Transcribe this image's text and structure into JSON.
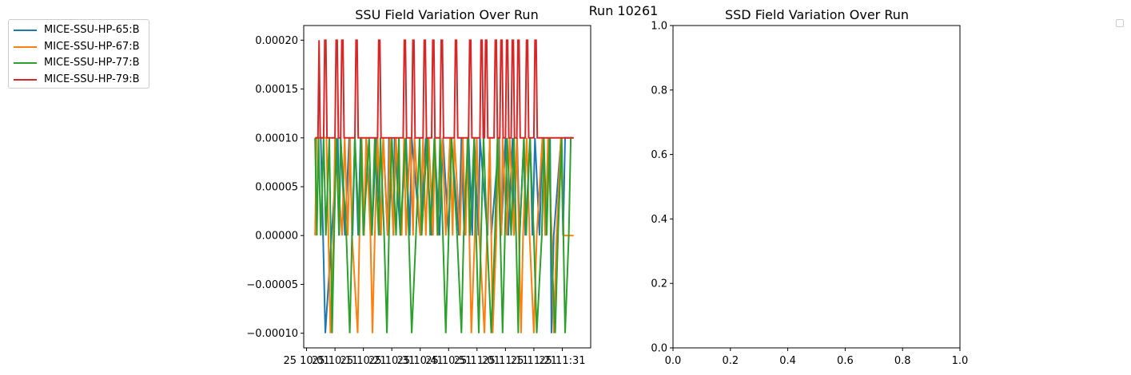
{
  "suptitle": "Run 10261",
  "colors": {
    "hp65": "#1f77b4",
    "hp67": "#ff7f0e",
    "hp77": "#2ca02c",
    "hp79": "#d62728"
  },
  "legend": {
    "entries": [
      "MICE-SSU-HP-65:B",
      "MICE-SSU-HP-67:B",
      "MICE-SSU-HP-77:B",
      "MICE-SSU-HP-79:B"
    ]
  },
  "chart_data": [
    {
      "type": "line",
      "title": "SSU Field Variation Over Run",
      "xlabel": "",
      "ylabel": "",
      "ylim": [
        -0.000115,
        0.000215
      ],
      "yticks": [
        "0.00020",
        "0.00015",
        "0.00010",
        "0.00005",
        "0.00000",
        "−0.00005",
        "−0.00010"
      ],
      "ytick_values": [
        0.0002,
        0.00015,
        0.0001,
        5e-05,
        0.0,
        -5e-05,
        -0.0001
      ],
      "xticks": [
        "25 10:01",
        "25 10:11",
        "25 10:21",
        "25 10:31",
        "25 10:41",
        "25 10:51",
        "25 11:01",
        "25 11:11",
        "25 11:21",
        "25 11:31"
      ],
      "xtick_minutes": [
        1,
        11,
        21,
        31,
        41,
        51,
        61,
        71,
        81,
        91
      ],
      "xlim_minutes": [
        0,
        101
      ],
      "grid": false,
      "legend_position": "outside-left",
      "series": [
        {
          "name": "MICE-SSU-HP-65:B",
          "x_minutes": [
            5,
            6,
            6.8,
            7.6,
            12,
            12.5,
            13,
            14.5,
            16,
            17.2,
            18,
            19.2,
            20,
            21.2,
            22,
            24,
            25.5,
            27,
            28,
            29.5,
            30,
            31.6,
            32,
            34,
            36,
            37.3,
            38,
            41,
            43,
            45,
            46,
            47.8,
            49,
            51,
            52,
            54.6,
            55.5,
            56.5,
            58,
            59.3,
            60,
            61.5,
            62,
            64.7,
            65.5,
            66,
            68.8,
            69.5,
            71,
            72,
            73.5,
            74,
            75.1,
            76,
            77.5,
            78,
            79.7,
            80.5,
            81.4,
            83,
            84,
            85,
            86.7,
            87.2,
            88,
            90.6,
            91.3,
            92,
            95
          ],
          "y": [
            0.0001,
            0.0001,
            0.0,
            -0.0001,
            0.0001,
            0.0,
            0.0001,
            0.0,
            0.0001,
            0.0,
            0.0001,
            0.0,
            0.0001,
            0.0,
            0.0001,
            0.0,
            0.0001,
            0.0,
            0.0001,
            0.0,
            0.0001,
            0.0,
            0.0001,
            0.0,
            0.0001,
            0.0,
            0.0001,
            0.0,
            0.0001,
            0.0,
            0.0001,
            0.0,
            0.0001,
            0.0,
            0.0001,
            0.0,
            0.0001,
            0.0,
            0.0001,
            0.0,
            0.0001,
            0.0,
            0.0001,
            0.0,
            0.0001,
            0.0,
            0.0001,
            0.0,
            0.0001,
            0.0,
            0.0001,
            0.0,
            0.0001,
            0.0,
            0.0001,
            0.0,
            0.0001,
            0.0,
            0.0001,
            0.0,
            0.0001,
            0.0,
            0.0001,
            -0.0001,
            0.0,
            0.0001,
            0.0,
            0.0001,
            0.0001
          ]
        },
        {
          "name": "MICE-SSU-HP-67:B",
          "x_minutes": [
            4,
            4.5,
            8,
            8.7,
            9.4,
            10.5,
            11,
            13.5,
            14.4,
            15.5,
            16.3,
            17,
            19,
            19.6,
            20.4,
            21.2,
            22,
            23.5,
            24.2,
            25,
            26,
            27.2,
            28,
            29.6,
            30.3,
            31.6,
            32.4,
            34.5,
            35.3,
            36,
            37.5,
            38.5,
            39,
            41,
            42,
            43,
            44,
            45.5,
            46.2,
            47,
            48.8,
            50,
            51.5,
            52.4,
            53,
            55,
            56,
            57,
            57.6,
            59,
            60.2,
            60.9,
            61.8,
            63.6,
            64.5,
            65.5,
            66.5,
            67.8,
            68.5,
            69.6,
            70,
            71.5,
            72.5,
            74,
            75,
            76.5,
            77.2,
            78.5,
            79.5,
            81,
            82,
            84,
            85,
            86,
            87.3,
            88,
            89,
            90.5,
            91.5,
            92.2,
            95
          ],
          "y": [
            0.0,
            0.0001,
            0.0001,
            0.0,
            -0.0001,
            0.0,
            0.0001,
            0.0,
            0.0001,
            0.0,
            0.0001,
            0.0,
            -0.0001,
            0.0,
            0.0001,
            0.0,
            0.0001,
            0.0,
            -0.0001,
            0.0,
            0.0001,
            0.0,
            0.0001,
            0.0,
            0.0001,
            0.0,
            0.0001,
            0.0,
            0.0001,
            0.0,
            0.0001,
            0.0,
            0.0001,
            0.0,
            0.0001,
            0.0,
            0.0001,
            0.0,
            0.0001,
            0.0,
            0.0001,
            0.0,
            0.0001,
            0.0,
            0.0001,
            0.0,
            0.0001,
            0.0,
            0.0001,
            -0.0001,
            0.0,
            0.0001,
            0.0,
            -0.0001,
            0.0,
            0.0001,
            -0.0001,
            0.0,
            0.0001,
            0.0,
            0.0001,
            0.0,
            0.0001,
            0.0,
            0.0001,
            -0.0001,
            0.0,
            0.0001,
            0.0,
            -0.0001,
            0.0,
            0.0001,
            0.0,
            0.0001,
            0.0,
            -0.0001,
            0.0,
            0.0001,
            0.0,
            0.0,
            0.0
          ]
        },
        {
          "name": "MICE-SSU-HP-77:B",
          "x_minutes": [
            4,
            4.6,
            5.2,
            6,
            7,
            7.8,
            9,
            10,
            10.7,
            11.5,
            12.4,
            13,
            15,
            16.2,
            17,
            18,
            19.5,
            20.2,
            21,
            23,
            24,
            25,
            26.4,
            27,
            28.3,
            29.3,
            30,
            31,
            32.5,
            33.5,
            34,
            35.8,
            37,
            38,
            39.5,
            40.8,
            41.5,
            43.5,
            44.5,
            46,
            47.2,
            48,
            50,
            51,
            52,
            54,
            55.5,
            56.3,
            57.8,
            58.5,
            60,
            60.7,
            61.6,
            62.4,
            63.3,
            64.5,
            66,
            67.3,
            68.2,
            69.2,
            70,
            70.8,
            71.6,
            73,
            74,
            75.5,
            76,
            77.5,
            78.3,
            79.6,
            81,
            82,
            83.8,
            84.5,
            85.5,
            86.5,
            87,
            88.5,
            89.5,
            90.8,
            92,
            93.3,
            94
          ],
          "y": [
            0.0001,
            0.0,
            0.0001,
            0.0,
            0.0001,
            0.0,
            0.0001,
            -0.0001,
            0.0,
            0.0001,
            0.0,
            0.0001,
            0.0,
            -0.0001,
            0.0,
            0.0001,
            0.0,
            0.0001,
            0.0,
            0.0001,
            0.0,
            0.0001,
            0.0,
            0.0001,
            0.0,
            -0.0001,
            0.0,
            0.0001,
            0.0,
            0.0001,
            0.0,
            0.0001,
            0.0,
            -0.0001,
            0.0,
            0.0001,
            0.0,
            0.0001,
            0.0,
            0.0001,
            0.0,
            0.0001,
            -0.0001,
            0.0,
            0.0001,
            0.0,
            -0.0001,
            0.0,
            0.0001,
            0.0,
            0.0001,
            0.0,
            -0.0001,
            0.0,
            0.0001,
            0.0,
            -0.0001,
            0.0,
            0.0001,
            0.0,
            -0.0001,
            0.0,
            0.0001,
            0.0,
            0.0001,
            -0.0001,
            0.0,
            0.0001,
            0.0,
            0.0001,
            0.0,
            -0.0001,
            0.0,
            0.0001,
            0.0,
            0.0001,
            0.0,
            -0.0001,
            0.0,
            0.0001,
            -0.0001,
            0.0,
            0.0001
          ]
        },
        {
          "name": "MICE-SSU-HP-79:B",
          "x_minutes": [
            4,
            5,
            5.4,
            5.8,
            7,
            7.4,
            7.8,
            8.2,
            11,
            11.4,
            11.8,
            12.2,
            13,
            13.4,
            13.8,
            14.2,
            18,
            18.4,
            18.8,
            19.2,
            26,
            26.4,
            26.8,
            27.2,
            35,
            35.4,
            35.8,
            36.2,
            38,
            38.4,
            38.8,
            39.2,
            42,
            42.4,
            42.8,
            43.2,
            45,
            45.4,
            45.8,
            46.2,
            48,
            48.4,
            48.8,
            49.2,
            53,
            53.4,
            53.8,
            54.2,
            58,
            58.4,
            58.8,
            59.2,
            62,
            62.4,
            62.8,
            63.2,
            63.6,
            64,
            64.4,
            64.8,
            67,
            67.4,
            67.8,
            68.2,
            69,
            69.4,
            69.8,
            70.2,
            71,
            71.4,
            71.8,
            72.2,
            73,
            73.4,
            73.8,
            74.2,
            75,
            75.4,
            75.8,
            76.2,
            78,
            78.4,
            78.8,
            79.2,
            81,
            81.4,
            81.8,
            82.2,
            95
          ],
          "y": [
            0.0001,
            0.0001,
            0.0002,
            0.0001,
            0.0001,
            0.0002,
            0.0002,
            0.0001,
            0.0001,
            0.0002,
            0.0002,
            0.0001,
            0.0001,
            0.0002,
            0.0002,
            0.0001,
            0.0001,
            0.0002,
            0.0002,
            0.0001,
            0.0001,
            0.0002,
            0.0002,
            0.0001,
            0.0001,
            0.0002,
            0.0002,
            0.0001,
            0.0001,
            0.0002,
            0.0002,
            0.0001,
            0.0001,
            0.0002,
            0.0002,
            0.0001,
            0.0001,
            0.0002,
            0.0002,
            0.0001,
            0.0001,
            0.0002,
            0.0002,
            0.0001,
            0.0001,
            0.0002,
            0.0002,
            0.0001,
            0.0001,
            0.0002,
            0.0002,
            0.0001,
            0.0001,
            0.0002,
            0.0002,
            0.0001,
            0.0001,
            0.0002,
            0.0002,
            0.0001,
            0.0001,
            0.0002,
            0.0002,
            0.0001,
            0.0001,
            0.0002,
            0.0002,
            0.0001,
            0.0001,
            0.0002,
            0.0002,
            0.0001,
            0.0001,
            0.0002,
            0.0002,
            0.0001,
            0.0001,
            0.0002,
            0.0002,
            0.0001,
            0.0001,
            0.0002,
            0.0002,
            0.0001,
            0.0001,
            0.0002,
            0.0002,
            0.0001,
            0.0001
          ]
        }
      ]
    },
    {
      "type": "line",
      "title": "SSD Field Variation Over Run",
      "xlabel": "",
      "ylabel": "",
      "xlim": [
        0.0,
        1.0
      ],
      "ylim": [
        0.0,
        1.0
      ],
      "xticks": [
        "0.0",
        "0.2",
        "0.4",
        "0.6",
        "0.8",
        "1.0"
      ],
      "yticks": [
        "1.0",
        "0.8",
        "0.6",
        "0.4",
        "0.2",
        "0.0"
      ],
      "grid": false,
      "legend_position": "outside-right",
      "series": []
    }
  ]
}
